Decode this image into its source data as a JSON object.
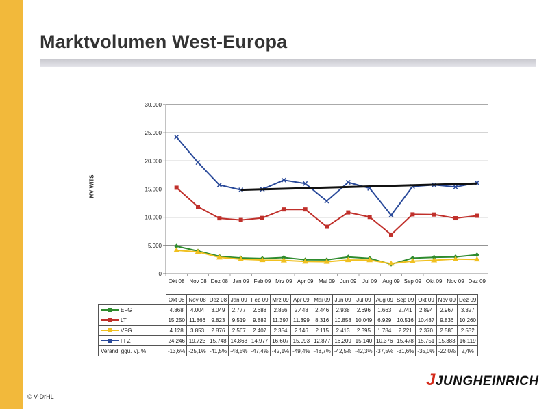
{
  "page": {
    "title": "Marktvolumen West-Europa",
    "copyright": "© V-DrHL",
    "logo_text": "JUNGHEINRICH",
    "logo_mark": "J",
    "sidebar_color": "#f2b93b"
  },
  "chart_data": {
    "type": "line",
    "ylabel": "MV WITS",
    "ylim": [
      0,
      30000
    ],
    "yticks": [
      0,
      5000,
      10000,
      15000,
      20000,
      25000,
      30000
    ],
    "ytick_labels": [
      "0",
      "5.000",
      "10.000",
      "15.000",
      "20.000",
      "25.000",
      "30.000"
    ],
    "categories": [
      "Okt 08",
      "Nov 08",
      "Dez 08",
      "Jan 09",
      "Feb 09",
      "Mrz 09",
      "Apr 09",
      "Mai 09",
      "Jun 09",
      "Jul 09",
      "Aug 09",
      "Sep 09",
      "Okt 09",
      "Nov 09",
      "Dez 09"
    ],
    "series": [
      {
        "name": "EFG",
        "color": "#2e8b2e",
        "marker": "diamond",
        "values": [
          4868,
          4004,
          3049,
          2777,
          2688,
          2856,
          2448,
          2446,
          2938,
          2696,
          1663,
          2741,
          2894,
          2967,
          3327
        ],
        "labels": [
          "4.868",
          "4.004",
          "3.049",
          "2.777",
          "2.688",
          "2.856",
          "2.448",
          "2.446",
          "2.938",
          "2.696",
          "1.663",
          "2.741",
          "2.894",
          "2.967",
          "3.327"
        ]
      },
      {
        "name": "LT",
        "color": "#c0302b",
        "marker": "square",
        "values": [
          15250,
          11866,
          9823,
          9519,
          9882,
          11397,
          11399,
          8316,
          10858,
          10049,
          6929,
          10516,
          10487,
          9836,
          10260
        ],
        "labels": [
          "15.250",
          "11.866",
          "9.823",
          "9.519",
          "9.882",
          "11.397",
          "11.399",
          "8.316",
          "10.858",
          "10.049",
          "6.929",
          "10.516",
          "10.487",
          "9.836",
          "10.260"
        ]
      },
      {
        "name": "VFG",
        "color": "#f0c020",
        "marker": "triangle",
        "values": [
          4128,
          3853,
          2876,
          2567,
          2407,
          2354,
          2146,
          2115,
          2413,
          2395,
          1784,
          2221,
          2370,
          2580,
          2532
        ],
        "labels": [
          "4.128",
          "3.853",
          "2.876",
          "2.567",
          "2.407",
          "2.354",
          "2.146",
          "2.115",
          "2.413",
          "2.395",
          "1.784",
          "2.221",
          "2.370",
          "2.580",
          "2.532"
        ]
      },
      {
        "name": "FFZ",
        "color": "#2a4a9a",
        "marker": "x",
        "values": [
          24246,
          19723,
          15748,
          14863,
          14977,
          16607,
          15993,
          12877,
          16209,
          15140,
          10376,
          15478,
          15751,
          15383,
          16119
        ],
        "labels": [
          "24.246",
          "19.723",
          "15.748",
          "14.863",
          "14.977",
          "16.607",
          "15.993",
          "12.877",
          "16.209",
          "15.140",
          "10.376",
          "15.478",
          "15.751",
          "15.383",
          "16.119"
        ]
      }
    ],
    "trendline": {
      "color": "#111111",
      "from_category": "Jan 09",
      "to_category": "Dez 09",
      "from_value": 14863,
      "to_value": 16000
    },
    "change_row": {
      "label": "Veränd. ggü. Vj. %",
      "values": [
        "-13,6%",
        "-25,1%",
        "-41,5%",
        "-48,5%",
        "-47,4%",
        "-42,1%",
        "-49,4%",
        "-48,7%",
        "-42,5%",
        "-42,3%",
        "-37,5%",
        "-31,6%",
        "-35,0%",
        "-22,0%",
        "2,4%"
      ]
    }
  }
}
